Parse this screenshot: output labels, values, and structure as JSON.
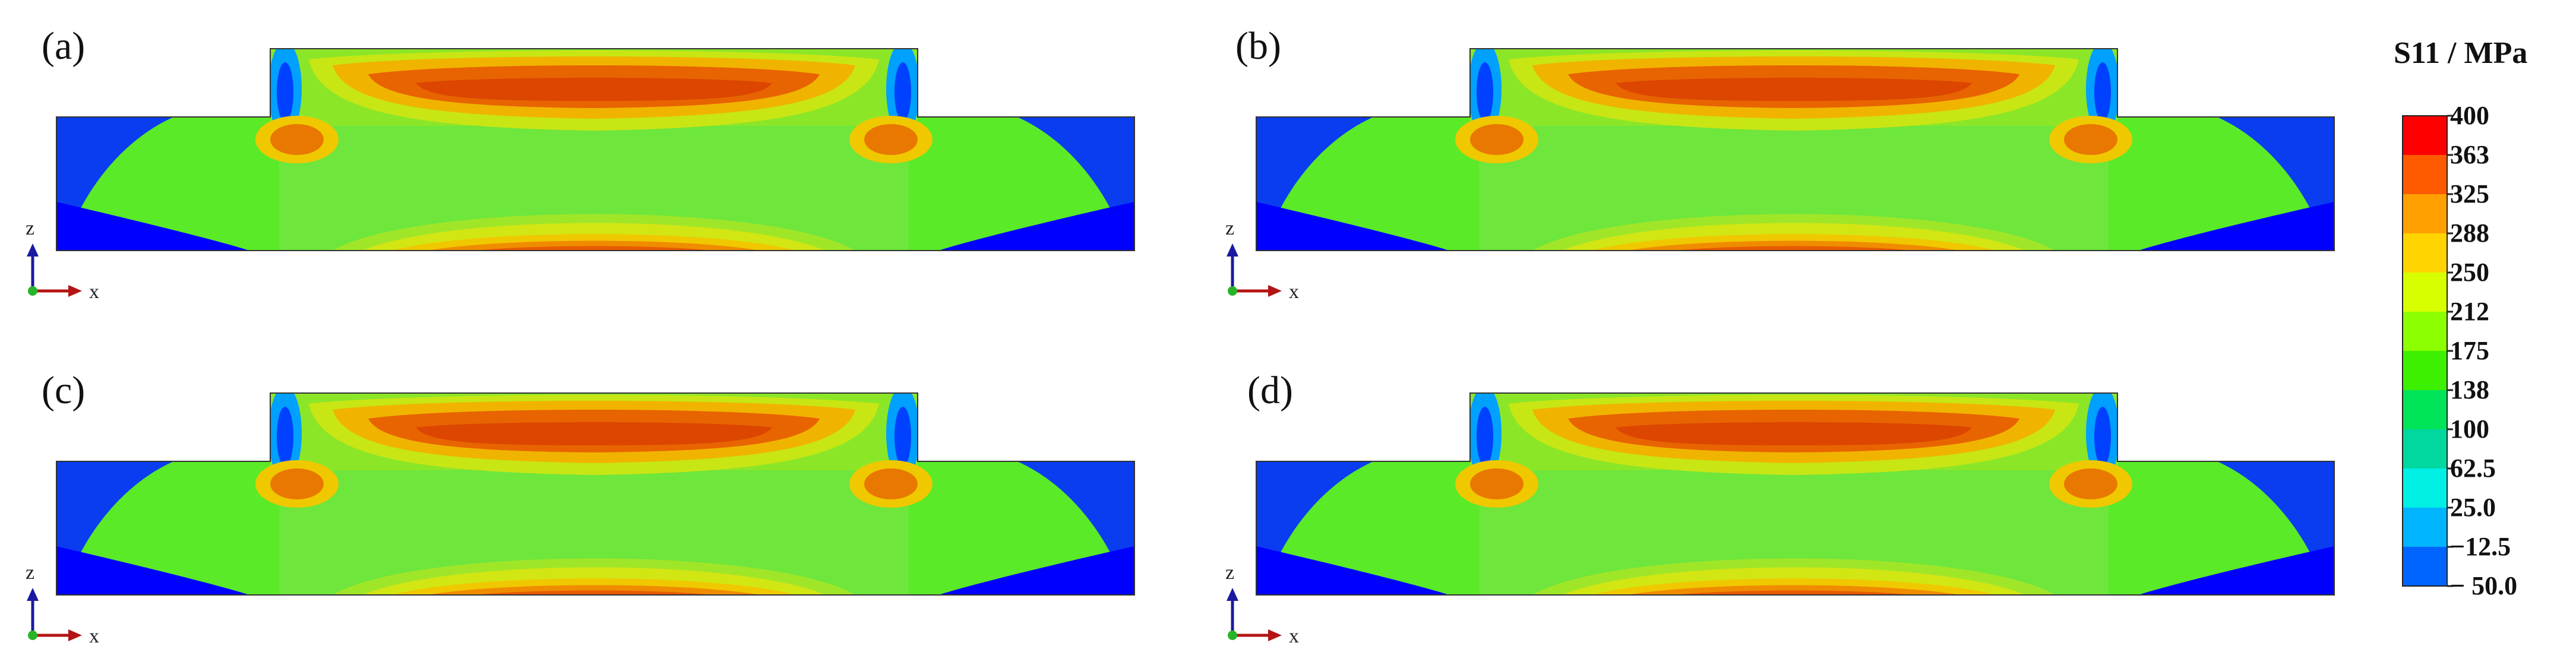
{
  "panels": [
    {
      "label": "(a)"
    },
    {
      "label": "(b)"
    },
    {
      "label": "(c)"
    },
    {
      "label": "(d)"
    }
  ],
  "axes": {
    "z": "z",
    "x": "x"
  },
  "legend": {
    "title": "S11 / MPa",
    "ticks": [
      "400",
      "363",
      "325",
      "288",
      "250",
      "212",
      "175",
      "138",
      "100",
      "62.5",
      "25.0",
      "−12.5",
      "− 50.0"
    ],
    "colors": [
      "#ff0000",
      "#ff5a00",
      "#ffa000",
      "#ffd400",
      "#d8ff00",
      "#8cff00",
      "#3cf000",
      "#00e45a",
      "#00d8a0",
      "#00f0e6",
      "#00b4ff",
      "#0064ff",
      "#0000ff"
    ]
  }
}
